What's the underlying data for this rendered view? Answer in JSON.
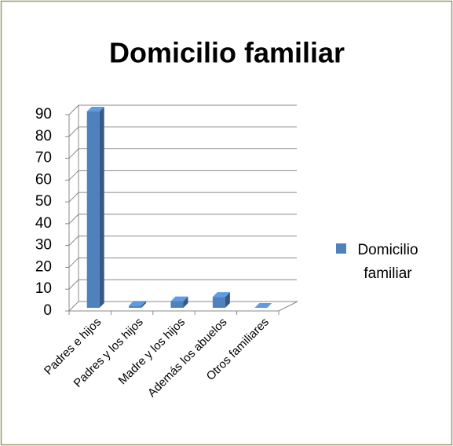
{
  "chart_data": {
    "type": "bar",
    "title": "Domicilio familiar",
    "categories": [
      "Padres e hijos",
      "Padres y los hijos",
      "Madre y los hijos",
      "Además los abuelos",
      "Otros familiares"
    ],
    "series": [
      {
        "name": "Domicilio familiar",
        "color": "#4f81bd",
        "values": [
          90,
          1,
          3,
          5,
          0
        ]
      }
    ],
    "ylim": [
      0,
      90
    ],
    "yticks": [
      0,
      10,
      20,
      30,
      40,
      50,
      60,
      70,
      80,
      90
    ],
    "grid": true,
    "legend": "right"
  }
}
